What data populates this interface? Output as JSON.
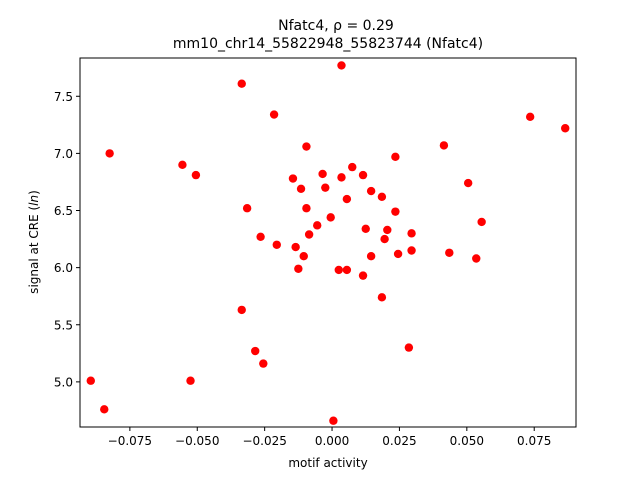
{
  "chart_data": {
    "type": "scatter",
    "title_line1": "Nfatc4, ρ = 0.29",
    "title_line2": "mm10_chr14_55822948_55823744 (Nfatc4)",
    "xlabel": "motif activity",
    "ylabel_prefix": "signal at CRE (",
    "ylabel_italic": "ln",
    "ylabel_suffix": ")",
    "xlim": [
      -0.0935,
      0.0905
    ],
    "ylim": [
      4.605,
      7.835
    ],
    "xticks": [
      -0.075,
      -0.05,
      -0.025,
      0.0,
      0.025,
      0.05,
      0.075
    ],
    "xtick_labels": [
      "−0.075",
      "−0.050",
      "−0.025",
      "0.000",
      "0.025",
      "0.050",
      "0.075"
    ],
    "yticks": [
      5.0,
      5.5,
      6.0,
      6.5,
      7.0,
      7.5
    ],
    "ytick_labels": [
      "5.0",
      "5.5",
      "6.0",
      "6.5",
      "7.0",
      "7.5"
    ],
    "marker_color": "#ff0000",
    "grid": false,
    "legend": "none",
    "points": [
      {
        "x": 0.0035,
        "y": 7.77
      },
      {
        "x": -0.0335,
        "y": 7.61
      },
      {
        "x": -0.0215,
        "y": 7.34
      },
      {
        "x": 0.0735,
        "y": 7.32
      },
      {
        "x": 0.0865,
        "y": 7.22
      },
      {
        "x": 0.0415,
        "y": 7.07
      },
      {
        "x": -0.0095,
        "y": 7.06
      },
      {
        "x": -0.0825,
        "y": 7.0
      },
      {
        "x": 0.0235,
        "y": 6.97
      },
      {
        "x": -0.0555,
        "y": 6.9
      },
      {
        "x": 0.0075,
        "y": 6.88
      },
      {
        "x": -0.0505,
        "y": 6.81
      },
      {
        "x": -0.0035,
        "y": 6.82
      },
      {
        "x": 0.0115,
        "y": 6.81
      },
      {
        "x": 0.0035,
        "y": 6.79
      },
      {
        "x": -0.0145,
        "y": 6.78
      },
      {
        "x": 0.0505,
        "y": 6.74
      },
      {
        "x": -0.0025,
        "y": 6.7
      },
      {
        "x": -0.0115,
        "y": 6.69
      },
      {
        "x": 0.0145,
        "y": 6.67
      },
      {
        "x": 0.0185,
        "y": 6.62
      },
      {
        "x": 0.0055,
        "y": 6.6
      },
      {
        "x": -0.0315,
        "y": 6.52
      },
      {
        "x": -0.0095,
        "y": 6.52
      },
      {
        "x": 0.0235,
        "y": 6.49
      },
      {
        "x": -0.0005,
        "y": 6.44
      },
      {
        "x": 0.0555,
        "y": 6.4
      },
      {
        "x": -0.0055,
        "y": 6.37
      },
      {
        "x": 0.0125,
        "y": 6.34
      },
      {
        "x": 0.0205,
        "y": 6.33
      },
      {
        "x": -0.0085,
        "y": 6.29
      },
      {
        "x": 0.0295,
        "y": 6.3
      },
      {
        "x": -0.0265,
        "y": 6.27
      },
      {
        "x": 0.0195,
        "y": 6.25
      },
      {
        "x": -0.0205,
        "y": 6.2
      },
      {
        "x": -0.0135,
        "y": 6.18
      },
      {
        "x": 0.0295,
        "y": 6.15
      },
      {
        "x": 0.0435,
        "y": 6.13
      },
      {
        "x": 0.0245,
        "y": 6.12
      },
      {
        "x": -0.0105,
        "y": 6.1
      },
      {
        "x": 0.0145,
        "y": 6.1
      },
      {
        "x": 0.0535,
        "y": 6.08
      },
      {
        "x": -0.0125,
        "y": 5.99
      },
      {
        "x": 0.0025,
        "y": 5.98
      },
      {
        "x": 0.0055,
        "y": 5.98
      },
      {
        "x": 0.0115,
        "y": 5.93
      },
      {
        "x": 0.0185,
        "y": 5.74
      },
      {
        "x": -0.0335,
        "y": 5.63
      },
      {
        "x": 0.0285,
        "y": 5.3
      },
      {
        "x": -0.0285,
        "y": 5.27
      },
      {
        "x": -0.0255,
        "y": 5.16
      },
      {
        "x": -0.0895,
        "y": 5.01
      },
      {
        "x": -0.0525,
        "y": 5.01
      },
      {
        "x": -0.0845,
        "y": 4.76
      },
      {
        "x": 0.0005,
        "y": 4.66
      }
    ]
  }
}
